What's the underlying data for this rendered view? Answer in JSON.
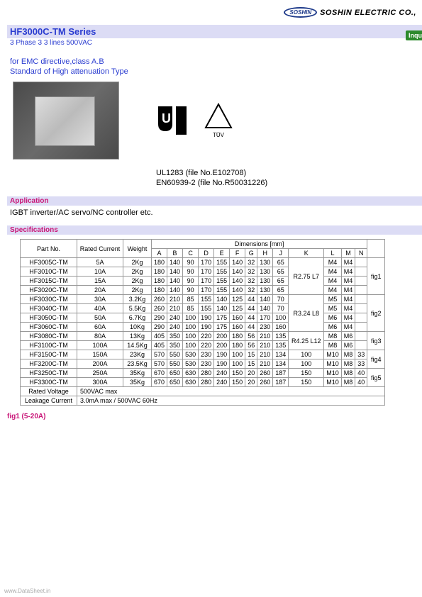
{
  "header": {
    "logo": "SOSHIN",
    "company": "SOSHIN ELECTRIC CO.,"
  },
  "series": {
    "title": "HF3000C-TM Series",
    "subtitle": "3 Phase 3 3 lines 500VAC",
    "inquire": "Inquir"
  },
  "emc": {
    "line1": "for EMC directive,class A.B",
    "line2": "Standard of High attenuation Type"
  },
  "cert": {
    "line1": "UL1283 (file No.E102708)",
    "line2": "EN60939-2 (file No.R50031226)"
  },
  "application": {
    "heading": "Application",
    "text": "IGBT inverter/AC servo/NC controller etc."
  },
  "specifications": {
    "heading": "Specifications",
    "columns": {
      "partno": "Part No.",
      "rated_current": "Rated Current",
      "weight": "Weight",
      "dimensions": "Dimensions [mm]",
      "dim_cols": [
        "A",
        "B",
        "C",
        "D",
        "E",
        "F",
        "G",
        "H",
        "J",
        "K",
        "L",
        "M",
        "N"
      ]
    },
    "rows": [
      {
        "part": "HF3005C-TM",
        "current": "5A",
        "weight": "2Kg",
        "dims": [
          "180",
          "140",
          "90",
          "170",
          "155",
          "140",
          "32",
          "130",
          "65",
          "",
          "M4",
          "M4",
          ""
        ],
        "k": "R2.75 L7",
        "fig": "fig1"
      },
      {
        "part": "HF3010C-TM",
        "current": "10A",
        "weight": "2Kg",
        "dims": [
          "180",
          "140",
          "90",
          "170",
          "155",
          "140",
          "32",
          "130",
          "65",
          "",
          "M4",
          "M4",
          ""
        ],
        "k": "",
        "fig": ""
      },
      {
        "part": "HF3015C-TM",
        "current": "15A",
        "weight": "2Kg",
        "dims": [
          "180",
          "140",
          "90",
          "170",
          "155",
          "140",
          "32",
          "130",
          "65",
          "",
          "M4",
          "M4",
          ""
        ],
        "k": "",
        "fig": ""
      },
      {
        "part": "HF3020C-TM",
        "current": "20A",
        "weight": "2Kg",
        "dims": [
          "180",
          "140",
          "90",
          "170",
          "155",
          "140",
          "32",
          "130",
          "65",
          "",
          "M4",
          "M4",
          ""
        ],
        "k": "",
        "fig": ""
      },
      {
        "part": "HF3030C-TM",
        "current": "30A",
        "weight": "3.2Kg",
        "dims": [
          "260",
          "210",
          "85",
          "155",
          "140",
          "125",
          "44",
          "140",
          "70",
          "",
          "M5",
          "M4",
          ""
        ],
        "k": "R3.24 L8",
        "fig": "fig2"
      },
      {
        "part": "HF3040C-TM",
        "current": "40A",
        "weight": "5.5Kg",
        "dims": [
          "260",
          "210",
          "85",
          "155",
          "140",
          "125",
          "44",
          "140",
          "70",
          "",
          "M5",
          "M4",
          ""
        ],
        "k": "",
        "fig": ""
      },
      {
        "part": "HF3050C-TM",
        "current": "50A",
        "weight": "6.7Kg",
        "dims": [
          "290",
          "240",
          "100",
          "190",
          "175",
          "160",
          "44",
          "170",
          "100",
          "",
          "M6",
          "M4",
          ""
        ],
        "k": "",
        "fig": ""
      },
      {
        "part": "HF3060C-TM",
        "current": "60A",
        "weight": "10Kg",
        "dims": [
          "290",
          "240",
          "100",
          "190",
          "175",
          "160",
          "44",
          "230",
          "160",
          "",
          "M6",
          "M4",
          ""
        ],
        "k": "",
        "fig": ""
      },
      {
        "part": "HF3080C-TM",
        "current": "80A",
        "weight": "13Kg",
        "dims": [
          "405",
          "350",
          "100",
          "220",
          "200",
          "180",
          "56",
          "210",
          "135",
          "",
          "M8",
          "M6",
          ""
        ],
        "k": "R4.25 L12",
        "fig": "fig3"
      },
      {
        "part": "HF3100C-TM",
        "current": "100A",
        "weight": "14.5Kg",
        "dims": [
          "405",
          "350",
          "100",
          "220",
          "200",
          "180",
          "56",
          "210",
          "135",
          "",
          "M8",
          "M6",
          ""
        ],
        "k": "",
        "fig": ""
      },
      {
        "part": "HF3150C-TM",
        "current": "150A",
        "weight": "23Kg",
        "dims": [
          "570",
          "550",
          "530",
          "230",
          "190",
          "100",
          "15",
          "210",
          "134",
          "100",
          "M10",
          "M8",
          "33"
        ],
        "k": "",
        "fig": "fig4"
      },
      {
        "part": "HF3200C-TM",
        "current": "200A",
        "weight": "23.5Kg",
        "dims": [
          "570",
          "550",
          "530",
          "230",
          "190",
          "100",
          "15",
          "210",
          "134",
          "100",
          "M10",
          "M8",
          "33"
        ],
        "k": "",
        "fig": ""
      },
      {
        "part": "HF3250C-TM",
        "current": "250A",
        "weight": "35Kg",
        "dims": [
          "670",
          "650",
          "630",
          "280",
          "240",
          "150",
          "20",
          "260",
          "187",
          "150",
          "M10",
          "M8",
          "40"
        ],
        "k": "",
        "fig": "fig5"
      },
      {
        "part": "HF3300C-TM",
        "current": "300A",
        "weight": "35Kg",
        "dims": [
          "670",
          "650",
          "630",
          "280",
          "240",
          "150",
          "20",
          "260",
          "187",
          "150",
          "M10",
          "M8",
          "40"
        ],
        "k": "",
        "fig": ""
      }
    ],
    "rated_voltage_label": "Rated Voltage",
    "rated_voltage": "500VAC max",
    "leakage_label": "Leakage Current",
    "leakage": "3.0mA max / 500VAC 60Hz"
  },
  "fig1_label": "fig1 (5-20A)",
  "watermark": "www.DataSheet.in"
}
